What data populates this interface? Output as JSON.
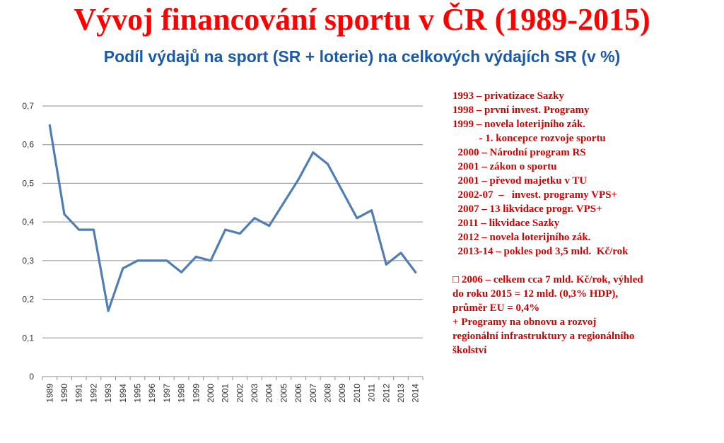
{
  "title": "Vývoj financování sportu v ČR (1989-2015)",
  "subtitle": "Podíl výdajů na sport (SR + loterie) na celkových výdajích SR (v %)",
  "chart_data": {
    "type": "line",
    "title": "",
    "xlabel": "",
    "ylabel": "",
    "categories": [
      "1989",
      "1990",
      "1991",
      "1992",
      "1993",
      "1994",
      "1995",
      "1996",
      "1997",
      "1998",
      "1999",
      "2000",
      "2001",
      "2002",
      "2003",
      "2004",
      "2005",
      "2006",
      "2007",
      "2008",
      "2009",
      "2010",
      "2011",
      "2012",
      "2013",
      "2014"
    ],
    "series": [
      {
        "name": "",
        "values": [
          0.65,
          0.42,
          0.38,
          0.38,
          0.17,
          0.28,
          0.3,
          0.3,
          0.3,
          0.27,
          0.31,
          0.3,
          0.38,
          0.37,
          0.41,
          0.39,
          0.45,
          0.51,
          0.58,
          0.55,
          0.48,
          0.41,
          0.43,
          0.29,
          0.32,
          0.27
        ]
      }
    ],
    "ylim": [
      0,
      0.7
    ],
    "yticks": [
      "0",
      "0,1",
      "0,2",
      "0,3",
      "0,4",
      "0,5",
      "0,6",
      "0,7"
    ],
    "grid": true,
    "legend": "none",
    "line_color": "#4f7db5"
  },
  "timeline": [
    "1993 – privatizace Sazky",
    "1998 – první invest. Programy",
    "1999 – novela loterijního zák.",
    "          - 1. koncepce rozvoje sportu",
    "  2000 – Národní program RS",
    "  2001 – zákon o sportu",
    "  2001 – převod majetku v TU",
    "  2002-07  –   invest. programy VPS+",
    "  2007 – 13 likvidace progr. VPS+",
    "  2011 – likvidace Sazky",
    "  2012 – novela loterijního zák.",
    "  2013-14 – pokles pod 3,5 mld.  Kč/rok"
  ],
  "summary": [
    " 2006 – celkem cca 7 mld. Kč/rok, výhled",
    "do roku 2015 = 12 mld. (0,3% HDP),",
    "průměr EU = 0,4%",
    "+ Programy na obnovu a rozvoj",
    "regionální infrastruktury a regionálního",
    "školství"
  ],
  "summary_bullet": "□"
}
